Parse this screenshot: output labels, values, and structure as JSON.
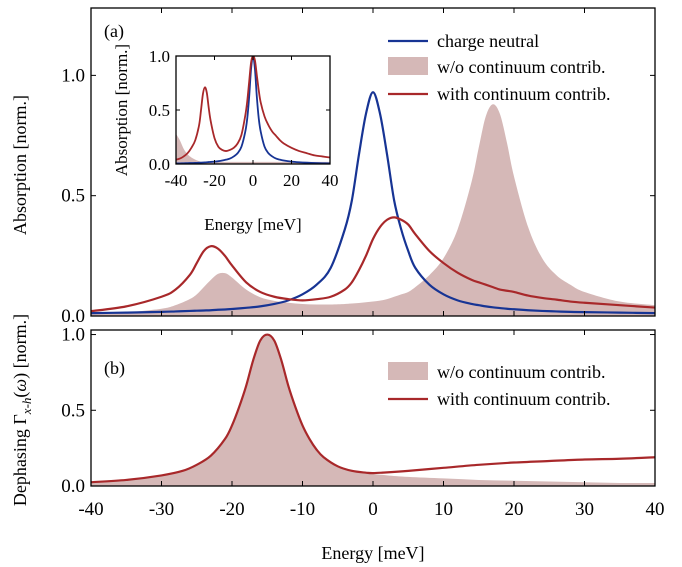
{
  "colors": {
    "neutral": "#173494",
    "continuum": "#A8282A",
    "no_continuum_fill": "#D5B8B7"
  },
  "x_axis": {
    "label": "Energy [meV]",
    "ticks": [
      "-40",
      "-30",
      "-20",
      "-10",
      "0",
      "10",
      "20",
      "30",
      "40"
    ]
  },
  "chart_data": [
    {
      "id": "panel_a",
      "type": "line",
      "panel_label": "(a)",
      "ylabel": "Absorption [norm.]",
      "xlabel": "",
      "xlim": [
        -40,
        40
      ],
      "ylim": [
        0,
        1.28
      ],
      "yticks": [
        "0.0",
        "0.5",
        "1.0"
      ],
      "grid": false,
      "legend_position": "top-right",
      "x": [
        -40,
        -35,
        -30,
        -28,
        -26,
        -25,
        -24,
        -23,
        -22,
        -21,
        -20,
        -18,
        -16,
        -14,
        -12,
        -10,
        -8,
        -6,
        -4,
        -3,
        -2,
        -1,
        0,
        1,
        2,
        3,
        4,
        5,
        6,
        8,
        10,
        12,
        14,
        15,
        16,
        17,
        18,
        19,
        20,
        22,
        24,
        26,
        28,
        30,
        35,
        40
      ],
      "series": [
        {
          "name": "charge neutral",
          "style": "line",
          "color": "#173494",
          "values": [
            0.012,
            0.014,
            0.017,
            0.019,
            0.021,
            0.022,
            0.023,
            0.024,
            0.026,
            0.027,
            0.029,
            0.034,
            0.04,
            0.05,
            0.065,
            0.09,
            0.13,
            0.2,
            0.36,
            0.48,
            0.67,
            0.84,
            0.93,
            0.84,
            0.67,
            0.48,
            0.36,
            0.27,
            0.2,
            0.13,
            0.09,
            0.065,
            0.05,
            0.045,
            0.04,
            0.036,
            0.033,
            0.03,
            0.028,
            0.024,
            0.021,
            0.019,
            0.017,
            0.016,
            0.014,
            0.012
          ]
        },
        {
          "name": "w/o continuum contrib.",
          "style": "filled",
          "color": "#D5B8B7",
          "values": [
            0.01,
            0.015,
            0.03,
            0.045,
            0.07,
            0.09,
            0.12,
            0.15,
            0.175,
            0.178,
            0.16,
            0.11,
            0.078,
            0.063,
            0.055,
            0.05,
            0.048,
            0.048,
            0.05,
            0.052,
            0.054,
            0.057,
            0.06,
            0.064,
            0.07,
            0.08,
            0.09,
            0.1,
            0.12,
            0.17,
            0.24,
            0.36,
            0.56,
            0.7,
            0.83,
            0.88,
            0.84,
            0.72,
            0.58,
            0.37,
            0.24,
            0.17,
            0.13,
            0.1,
            0.06,
            0.045
          ]
        },
        {
          "name": "with continuum contrib.",
          "style": "line",
          "color": "#A8282A",
          "values": [
            0.02,
            0.04,
            0.08,
            0.11,
            0.17,
            0.22,
            0.27,
            0.29,
            0.28,
            0.25,
            0.21,
            0.14,
            0.1,
            0.08,
            0.07,
            0.065,
            0.07,
            0.08,
            0.11,
            0.14,
            0.19,
            0.25,
            0.32,
            0.37,
            0.4,
            0.41,
            0.4,
            0.38,
            0.34,
            0.27,
            0.22,
            0.18,
            0.15,
            0.14,
            0.13,
            0.12,
            0.11,
            0.105,
            0.1,
            0.085,
            0.075,
            0.068,
            0.06,
            0.055,
            0.045,
            0.035
          ]
        }
      ]
    },
    {
      "id": "inset",
      "type": "line",
      "xlabel": "Energy [meV]",
      "ylabel": "Absorption [norm.]",
      "xlim": [
        -40,
        40
      ],
      "ylim": [
        0,
        1.0
      ],
      "xticks": [
        "-40",
        "-20",
        "0",
        "20",
        "40"
      ],
      "yticks": [
        "0.0",
        "0.5",
        "1.0"
      ],
      "x": [
        -40,
        -38,
        -36,
        -34,
        -32,
        -30,
        -28,
        -27,
        -26,
        -25,
        -24,
        -23,
        -22,
        -20,
        -18,
        -16,
        -14,
        -12,
        -10,
        -8,
        -6,
        -4,
        -3,
        -2,
        -1,
        0,
        1,
        2,
        3,
        4,
        6,
        8,
        10,
        12,
        14,
        16,
        20,
        24,
        28,
        32,
        36,
        40
      ],
      "series": [
        {
          "style": "filled",
          "color": "#D5B8B7",
          "values": [
            0.28,
            0.22,
            0.14,
            0.09,
            0.06,
            0.04,
            0.025,
            0.02,
            0.02,
            0.02,
            0.02,
            0.02,
            0.02,
            0.02,
            0.02,
            0.02,
            0.02,
            0.02,
            0.02,
            0.02,
            0.02,
            0.02,
            0.02,
            0.02,
            0.02,
            0.02,
            0.02,
            0.02,
            0.02,
            0.02,
            0.02,
            0.02,
            0.02,
            0.02,
            0.02,
            0.02,
            0.02,
            0.02,
            0.02,
            0.02,
            0.02,
            0.02
          ]
        },
        {
          "style": "line",
          "color": "#173494",
          "values": [
            0.005,
            0.006,
            0.007,
            0.008,
            0.009,
            0.01,
            0.012,
            0.013,
            0.014,
            0.015,
            0.016,
            0.018,
            0.019,
            0.022,
            0.026,
            0.032,
            0.04,
            0.05,
            0.07,
            0.1,
            0.16,
            0.3,
            0.42,
            0.62,
            0.88,
            1.0,
            0.88,
            0.62,
            0.42,
            0.3,
            0.16,
            0.1,
            0.07,
            0.05,
            0.04,
            0.032,
            0.022,
            0.016,
            0.012,
            0.009,
            0.007,
            0.005
          ]
        },
        {
          "style": "line",
          "color": "#A8282A",
          "values": [
            0.04,
            0.05,
            0.07,
            0.1,
            0.15,
            0.22,
            0.36,
            0.5,
            0.65,
            0.71,
            0.66,
            0.52,
            0.4,
            0.24,
            0.16,
            0.13,
            0.12,
            0.13,
            0.15,
            0.19,
            0.27,
            0.45,
            0.58,
            0.76,
            0.94,
            1.0,
            0.96,
            0.82,
            0.68,
            0.57,
            0.44,
            0.36,
            0.3,
            0.26,
            0.22,
            0.19,
            0.15,
            0.12,
            0.1,
            0.08,
            0.07,
            0.06
          ]
        }
      ]
    },
    {
      "id": "panel_b",
      "type": "line",
      "panel_label": "(b)",
      "ylabel": "Dephasing Γx-h(ω) [norm.]",
      "xlabel": "",
      "xlim": [
        -40,
        40
      ],
      "ylim": [
        0,
        1.03
      ],
      "yticks": [
        "0.0",
        "0.5",
        "1.0"
      ],
      "grid": false,
      "legend_position": "top-right",
      "x": [
        -40,
        -35,
        -30,
        -27,
        -25,
        -23,
        -21,
        -20,
        -19,
        -18,
        -17,
        -16,
        -15,
        -14,
        -13,
        -12,
        -11,
        -10,
        -9,
        -8,
        -7,
        -5,
        -3,
        -1,
        0,
        2,
        5,
        10,
        15,
        20,
        25,
        30,
        35,
        40
      ],
      "series": [
        {
          "name": "w/o continuum contrib.",
          "style": "filled",
          "color": "#D5B8B7",
          "values": [
            0.025,
            0.04,
            0.07,
            0.1,
            0.14,
            0.2,
            0.31,
            0.4,
            0.52,
            0.66,
            0.83,
            0.96,
            1.0,
            0.96,
            0.83,
            0.66,
            0.52,
            0.4,
            0.31,
            0.24,
            0.19,
            0.13,
            0.1,
            0.085,
            0.08,
            0.07,
            0.06,
            0.05,
            0.04,
            0.035,
            0.03,
            0.025,
            0.02,
            0.02
          ]
        },
        {
          "name": "with continuum contrib.",
          "style": "line",
          "color": "#A8282A",
          "values": [
            0.025,
            0.04,
            0.07,
            0.1,
            0.14,
            0.2,
            0.31,
            0.4,
            0.52,
            0.66,
            0.83,
            0.96,
            1.0,
            0.96,
            0.83,
            0.66,
            0.52,
            0.4,
            0.31,
            0.24,
            0.19,
            0.13,
            0.1,
            0.088,
            0.085,
            0.09,
            0.1,
            0.12,
            0.14,
            0.155,
            0.165,
            0.175,
            0.18,
            0.19
          ]
        }
      ]
    }
  ]
}
